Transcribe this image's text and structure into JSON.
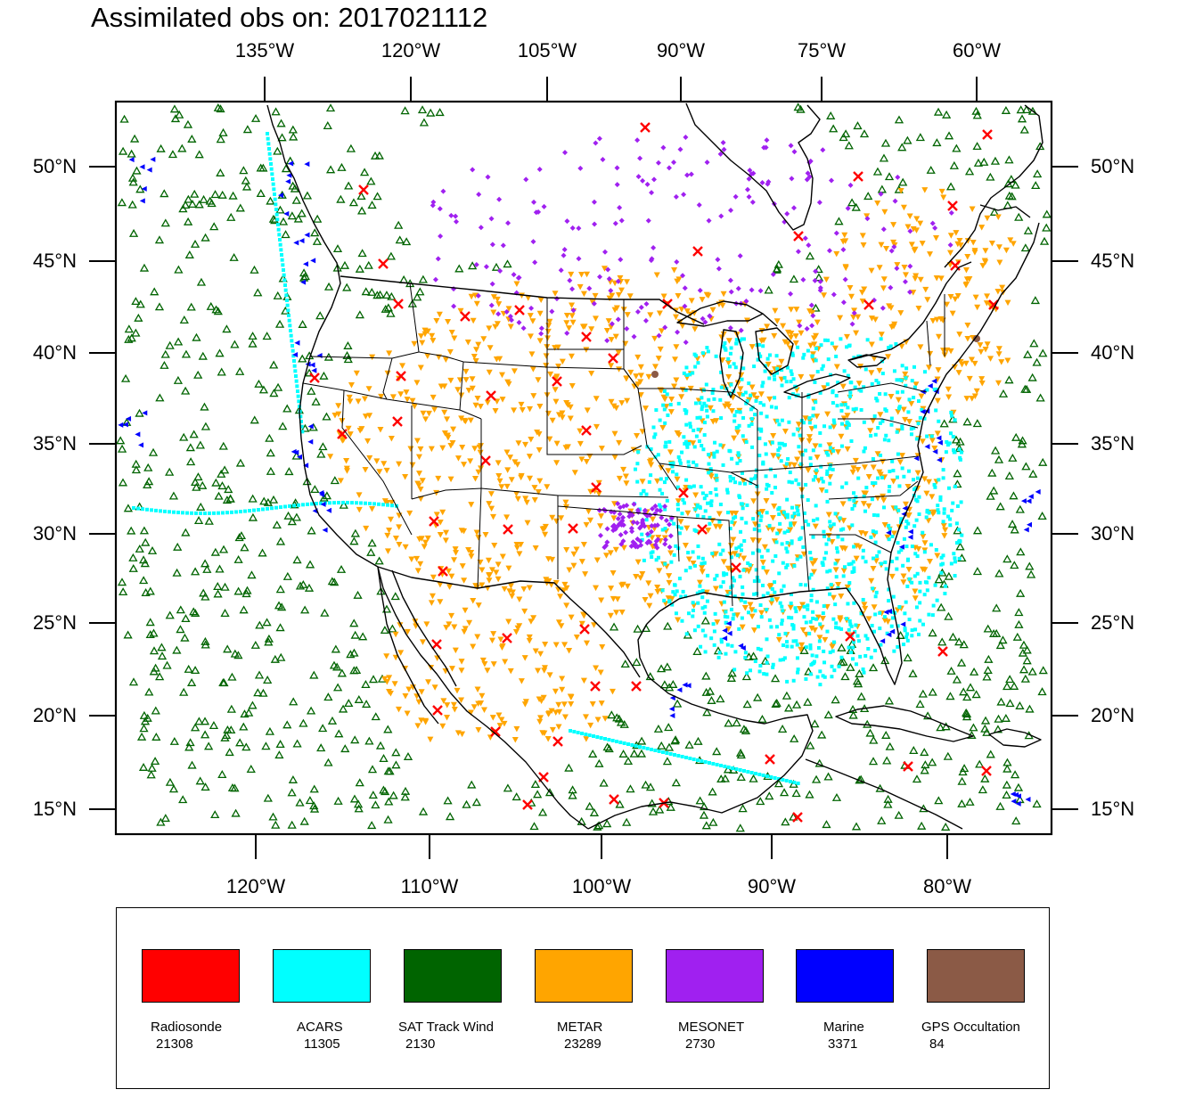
{
  "title": "Assimilated obs on: 2017021112",
  "map": {
    "top_lon_labels": [
      "135°W",
      "120°W",
      "105°W",
      "90°W",
      "75°W",
      "60°W"
    ],
    "bottom_lon_labels": [
      "120°W",
      "110°W",
      "100°W",
      "90°W",
      "80°W"
    ],
    "lat_labels": [
      "50°N",
      "45°N",
      "40°N",
      "35°N",
      "30°N",
      "25°N",
      "20°N",
      "15°N"
    ]
  },
  "legend": [
    {
      "name": "Radiosonde",
      "count": "21308",
      "color": "#ff0000"
    },
    {
      "name": "ACARS",
      "count": "11305",
      "color": "#00ffff"
    },
    {
      "name": "SAT Track Wind",
      "count": "2130",
      "color": "#006400"
    },
    {
      "name": "METAR",
      "count": "23289",
      "color": "#ffa500"
    },
    {
      "name": "MESONET",
      "count": "2730",
      "color": "#a020f0"
    },
    {
      "name": "Marine",
      "count": "3371",
      "color": "#0000ff"
    },
    {
      "name": "GPS Occultation",
      "count": "84",
      "color": "#8b5a46"
    }
  ]
}
